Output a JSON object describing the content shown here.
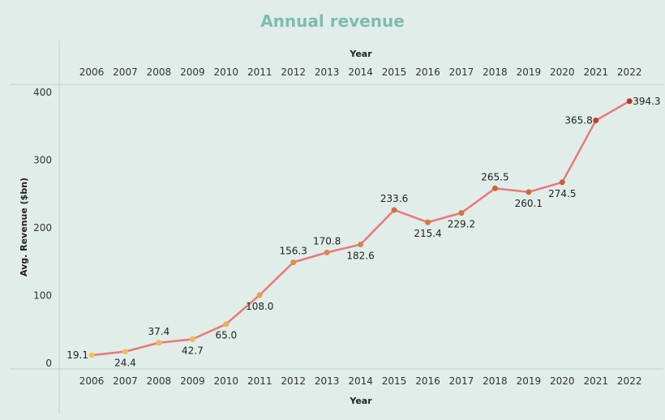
{
  "chart_data": {
    "type": "line",
    "title": "Annual revenue",
    "xlabel": "Year",
    "ylabel": "Avg. Revenue ($bn)",
    "x": [
      "2006",
      "2007",
      "2008",
      "2009",
      "2010",
      "2011",
      "2012",
      "2013",
      "2014",
      "2015",
      "2016",
      "2017",
      "2018",
      "2019",
      "2020",
      "2021",
      "2022"
    ],
    "series": [
      {
        "values": [
          19.1,
          24.4,
          37.4,
          42.7,
          65.0,
          108.0,
          156.3,
          170.8,
          182.6,
          233.6,
          215.4,
          229.2,
          265.5,
          260.1,
          274.5,
          365.8,
          394.3
        ],
        "labels": [
          "19.1",
          "24.4",
          "37.4",
          "42.7",
          "65.0",
          "108.0",
          "156.3",
          "170.8",
          "182.6",
          "233.6",
          "215.4",
          "229.2",
          "265.5",
          "260.1",
          "274.5",
          "365.8",
          "394.3"
        ]
      }
    ],
    "y_ticks": [
      "0",
      "100",
      "200",
      "300",
      "400"
    ],
    "ylim": [
      0,
      420
    ],
    "grid": false,
    "line_color": "#e8787a",
    "marker_color_low": "#f3c05e",
    "marker_color_high": "#b8362a"
  }
}
